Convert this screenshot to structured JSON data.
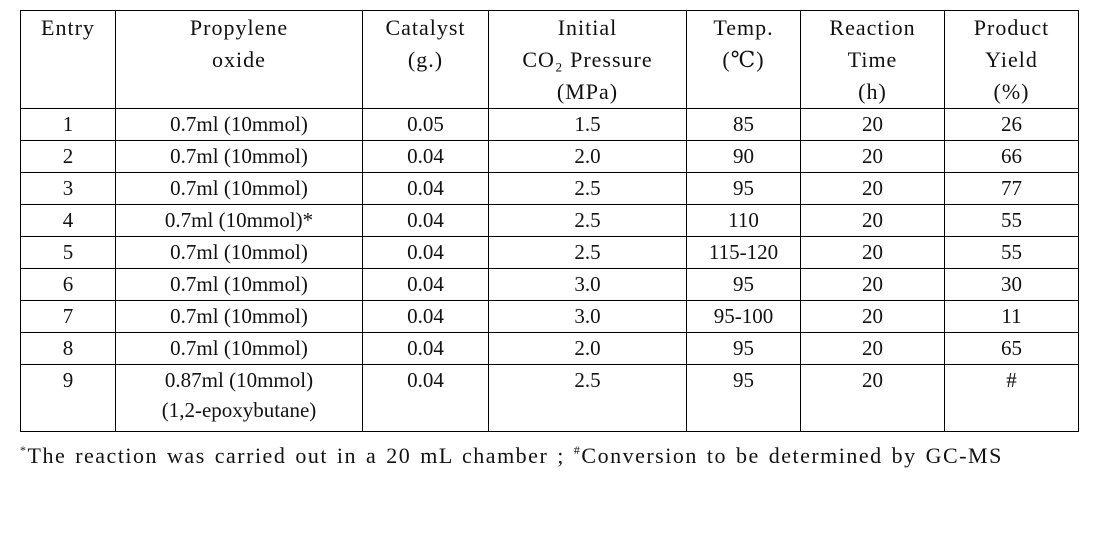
{
  "table": {
    "header": [
      [
        "Entry"
      ],
      [
        "Propylene",
        "oxide"
      ],
      [
        "Catalyst",
        "(g.)"
      ],
      [
        "Initial",
        "CO₂ Pressure",
        "(MPa)"
      ],
      [
        "Temp.",
        "(℃)"
      ],
      [
        "Reaction",
        "Time",
        "(h)"
      ],
      [
        "Product",
        "Yield",
        "(%)"
      ]
    ],
    "rows": [
      [
        [
          "1"
        ],
        [
          "0.7ml (10mmol)"
        ],
        [
          "0.05"
        ],
        [
          "1.5"
        ],
        [
          "85"
        ],
        [
          "20"
        ],
        [
          "26"
        ]
      ],
      [
        [
          "2"
        ],
        [
          "0.7ml (10mmol)"
        ],
        [
          "0.04"
        ],
        [
          "2.0"
        ],
        [
          "90"
        ],
        [
          "20"
        ],
        [
          "66"
        ]
      ],
      [
        [
          "3"
        ],
        [
          "0.7ml (10mmol)"
        ],
        [
          "0.04"
        ],
        [
          "2.5"
        ],
        [
          "95"
        ],
        [
          "20"
        ],
        [
          "77"
        ]
      ],
      [
        [
          "4"
        ],
        [
          "0.7ml (10mmol)*"
        ],
        [
          "0.04"
        ],
        [
          "2.5"
        ],
        [
          "110"
        ],
        [
          "20"
        ],
        [
          "55"
        ]
      ],
      [
        [
          "5"
        ],
        [
          "0.7ml (10mmol)"
        ],
        [
          "0.04"
        ],
        [
          "2.5"
        ],
        [
          "115-120"
        ],
        [
          "20"
        ],
        [
          "55"
        ]
      ],
      [
        [
          "6"
        ],
        [
          "0.7ml (10mmol)"
        ],
        [
          "0.04"
        ],
        [
          "3.0"
        ],
        [
          "95"
        ],
        [
          "20"
        ],
        [
          "30"
        ]
      ],
      [
        [
          "7"
        ],
        [
          "0.7ml (10mmol)"
        ],
        [
          "0.04"
        ],
        [
          "3.0"
        ],
        [
          "95-100"
        ],
        [
          "20"
        ],
        [
          "11"
        ]
      ],
      [
        [
          "8"
        ],
        [
          "0.7ml (10mmol)"
        ],
        [
          "0.04"
        ],
        [
          "2.0"
        ],
        [
          "95"
        ],
        [
          "20"
        ],
        [
          "65"
        ]
      ],
      [
        [
          "9"
        ],
        [
          "0.87ml (10mmol)",
          "(1,2-epoxybutane)"
        ],
        [
          "0.04"
        ],
        [
          "2.5"
        ],
        [
          "95"
        ],
        [
          "20"
        ],
        [
          "#"
        ]
      ]
    ]
  },
  "footnote": {
    "mark1": "*",
    "text1": "The reaction was carried out in a 20 mL chamber ; ",
    "mark2": "#",
    "text2": "Conversion to be determined by GC-MS"
  }
}
